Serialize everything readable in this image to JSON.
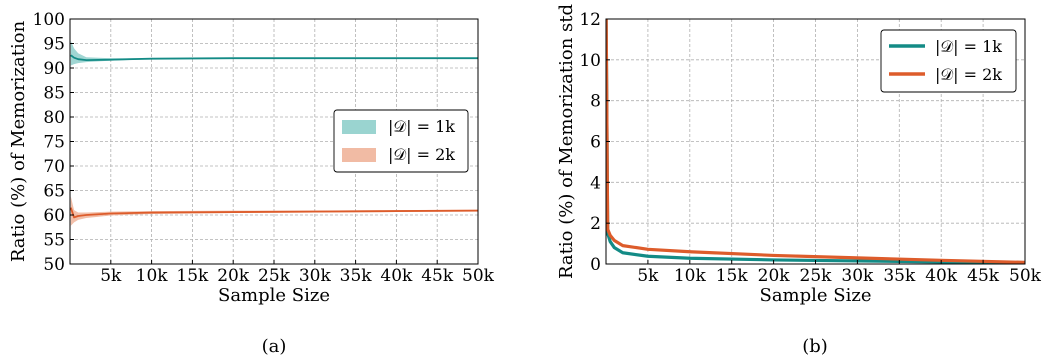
{
  "chart_data": [
    {
      "type": "area",
      "caption": "(a)",
      "xlabel": "Sample Size",
      "ylabel": "Ratio (%) of Memorization",
      "xlim": [
        0,
        50000
      ],
      "ylim": [
        50,
        100
      ],
      "grid": true,
      "legend_position": "center-right",
      "x_ticks": [
        5000,
        10000,
        15000,
        20000,
        25000,
        30000,
        35000,
        40000,
        45000,
        50000
      ],
      "x_tick_labels": [
        "5k",
        "10k",
        "15k",
        "20k",
        "25k",
        "30k",
        "35k",
        "40k",
        "45k",
        "50k"
      ],
      "y_ticks": [
        50,
        55,
        60,
        65,
        70,
        75,
        80,
        85,
        90,
        95,
        100
      ],
      "y_tick_labels": [
        "50",
        "55",
        "60",
        "65",
        "70",
        "75",
        "80",
        "85",
        "90",
        "95",
        "100"
      ],
      "series": [
        {
          "name": "|𝒟| = 1k",
          "color": "#138b86",
          "band_color": "#8fcfcb",
          "x": [
            100,
            500,
            1000,
            2000,
            5000,
            10000,
            20000,
            30000,
            40000,
            50000
          ],
          "y": [
            92.6,
            92.1,
            91.8,
            91.6,
            91.7,
            91.9,
            92.0,
            92.0,
            92.0,
            92.0
          ],
          "lower": [
            90.5,
            90.8,
            91.0,
            91.2,
            91.5,
            91.8,
            91.9,
            91.9,
            91.9,
            91.9
          ],
          "upper": [
            95.5,
            94.0,
            93.0,
            92.2,
            92.0,
            92.0,
            92.1,
            92.1,
            92.1,
            92.1
          ]
        },
        {
          "name": "|𝒟| = 2k",
          "color": "#dd5c2b",
          "band_color": "#f0b49a",
          "x": [
            100,
            500,
            1000,
            2000,
            5000,
            10000,
            20000,
            30000,
            40000,
            50000
          ],
          "y": [
            61.5,
            59.5,
            59.8,
            60.0,
            60.3,
            60.5,
            60.6,
            60.7,
            60.8,
            60.9
          ],
          "lower": [
            57.8,
            58.5,
            59.0,
            59.4,
            59.9,
            60.2,
            60.4,
            60.5,
            60.6,
            60.7
          ],
          "upper": [
            63.8,
            61.0,
            60.5,
            60.5,
            60.7,
            60.8,
            60.9,
            60.9,
            61.0,
            61.1
          ]
        }
      ]
    },
    {
      "type": "line",
      "caption": "(b)",
      "xlabel": "Sample Size",
      "ylabel": "Ratio (%) of Memorization std",
      "xlim": [
        0,
        50000
      ],
      "ylim": [
        0,
        12
      ],
      "grid": true,
      "legend_position": "top-right",
      "x_ticks": [
        5000,
        10000,
        15000,
        20000,
        25000,
        30000,
        35000,
        40000,
        45000,
        50000
      ],
      "x_tick_labels": [
        "5k",
        "10k",
        "15k",
        "20k",
        "25k",
        "30k",
        "35k",
        "40k",
        "45k",
        "50k"
      ],
      "y_ticks": [
        0,
        2,
        4,
        6,
        8,
        10,
        12
      ],
      "y_tick_labels": [
        "0",
        "2",
        "4",
        "6",
        "8",
        "10",
        "12"
      ],
      "series": [
        {
          "name": "|𝒟| = 1k",
          "color": "#138b86",
          "x": [
            20,
            200,
            500,
            1000,
            2000,
            5000,
            10000,
            20000,
            30000,
            40000,
            50000
          ],
          "y": [
            12.0,
            1.5,
            1.1,
            0.8,
            0.55,
            0.38,
            0.28,
            0.2,
            0.15,
            0.1,
            0.05
          ]
        },
        {
          "name": "|𝒟| = 2k",
          "color": "#dd5c2b",
          "x": [
            20,
            200,
            500,
            1000,
            2000,
            5000,
            10000,
            20000,
            30000,
            40000,
            50000
          ],
          "y": [
            12.0,
            1.7,
            1.4,
            1.15,
            0.9,
            0.72,
            0.6,
            0.42,
            0.3,
            0.18,
            0.08
          ]
        }
      ]
    }
  ]
}
